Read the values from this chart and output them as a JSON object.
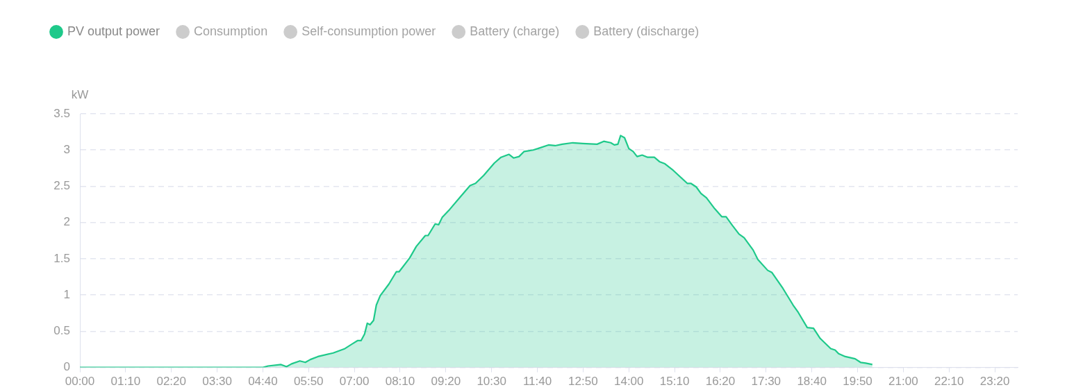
{
  "chart_data": {
    "type": "area",
    "ylabel": "kW",
    "legend": "top left",
    "grid": "y",
    "line_style": "solid",
    "marker": "none",
    "xlim": [
      0,
      23.9167
    ],
    "xticks": [
      {
        "value": 0,
        "label": "00:00"
      },
      {
        "value": 1.1667,
        "label": "01:10"
      },
      {
        "value": 2.3333,
        "label": "02:20"
      },
      {
        "value": 3.5,
        "label": "03:30"
      },
      {
        "value": 4.6667,
        "label": "04:40"
      },
      {
        "value": 5.8333,
        "label": "05:50"
      },
      {
        "value": 7,
        "label": "07:00"
      },
      {
        "value": 8.1667,
        "label": "08:10"
      },
      {
        "value": 9.3333,
        "label": "09:20"
      },
      {
        "value": 10.5,
        "label": "10:30"
      },
      {
        "value": 11.6667,
        "label": "11:40"
      },
      {
        "value": 12.8333,
        "label": "12:50"
      },
      {
        "value": 14,
        "label": "14:00"
      },
      {
        "value": 15.1667,
        "label": "15:10"
      },
      {
        "value": 16.3333,
        "label": "16:20"
      },
      {
        "value": 17.5,
        "label": "17:30"
      },
      {
        "value": 18.6667,
        "label": "18:40"
      },
      {
        "value": 19.8333,
        "label": "19:50"
      },
      {
        "value": 21,
        "label": "21:00"
      },
      {
        "value": 22.1667,
        "label": "22:10"
      },
      {
        "value": 23.3333,
        "label": "23:20"
      }
    ],
    "ylim": [
      0,
      3.5
    ],
    "yticks": [
      0,
      0.5,
      1,
      1.5,
      2,
      2.5,
      3,
      3.5
    ],
    "series": [
      {
        "name": "PV output power",
        "color": "#1ec98a",
        "x": [
          0,
          4.67,
          4.8,
          5.13,
          5.27,
          5.4,
          5.61,
          5.75,
          5.88,
          6.07,
          6.46,
          6.76,
          6.99,
          7.08,
          7.17,
          7.26,
          7.33,
          7.4,
          7.49,
          7.56,
          7.66,
          7.88,
          8.07,
          8.14,
          8.41,
          8.58,
          8.81,
          8.88,
          9.06,
          9.15,
          9.24,
          9.43,
          9.68,
          9.95,
          10.09,
          10.3,
          10.57,
          10.74,
          10.94,
          11.06,
          11.2,
          11.33,
          11.56,
          11.68,
          11.95,
          12.12,
          12.3,
          12.57,
          12.83,
          13.19,
          13.36,
          13.54,
          13.63,
          13.72,
          13.79,
          13.89,
          14,
          14.11,
          14.21,
          14.34,
          14.48,
          14.65,
          14.78,
          14.92,
          15.13,
          15.49,
          15.58,
          15.72,
          15.84,
          15.98,
          16.19,
          16.37,
          16.48,
          16.64,
          16.81,
          16.94,
          17.17,
          17.29,
          17.54,
          17.65,
          17.93,
          18.19,
          18.32,
          18.55,
          18.71,
          18.88,
          19.15,
          19.26,
          19.35,
          19.52,
          19.77,
          19.91,
          20.04,
          20.21
        ],
        "values": [
          0,
          0,
          0.02,
          0.04,
          0.01,
          0.05,
          0.09,
          0.07,
          0.11,
          0.15,
          0.2,
          0.26,
          0.34,
          0.37,
          0.37,
          0.46,
          0.61,
          0.59,
          0.65,
          0.86,
          0.99,
          1.15,
          1.32,
          1.32,
          1.51,
          1.67,
          1.82,
          1.82,
          1.98,
          1.97,
          2.07,
          2.18,
          2.34,
          2.51,
          2.54,
          2.65,
          2.82,
          2.9,
          2.94,
          2.89,
          2.91,
          2.98,
          3,
          3.02,
          3.07,
          3.06,
          3.08,
          3.1,
          3.09,
          3.08,
          3.12,
          3.1,
          3.07,
          3.08,
          3.2,
          3.17,
          3.02,
          2.98,
          2.91,
          2.93,
          2.9,
          2.9,
          2.84,
          2.81,
          2.72,
          2.54,
          2.54,
          2.49,
          2.4,
          2.34,
          2.19,
          2.08,
          2.08,
          1.96,
          1.84,
          1.79,
          1.62,
          1.49,
          1.34,
          1.31,
          1.09,
          0.86,
          0.76,
          0.55,
          0.54,
          0.4,
          0.26,
          0.24,
          0.19,
          0.15,
          0.12,
          0.07,
          0.06,
          0.04
        ]
      },
      {
        "name": "Consumption",
        "color": "#cccccc"
      },
      {
        "name": "Self-consumption power",
        "color": "#cccccc"
      },
      {
        "name": "Battery (charge)",
        "color": "#cccccc"
      },
      {
        "name": "Battery (discharge)",
        "color": "#cccccc"
      }
    ]
  }
}
